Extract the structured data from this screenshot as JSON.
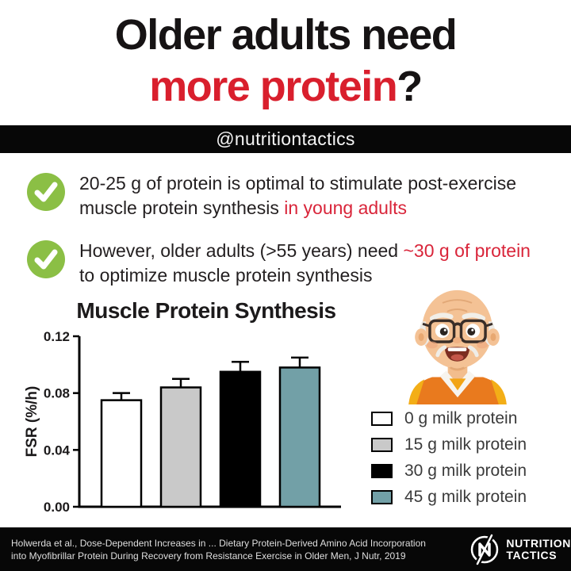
{
  "title": {
    "line1": "Older adults need",
    "line2_red": "more protein",
    "line2_black": "?"
  },
  "banner": {
    "handle": "@nutritiontactics"
  },
  "bullets": [
    {
      "line1": "20-25 g of protein is optimal to stimulate post-exercise",
      "line2_black": "muscle protein synthesis ",
      "line2_red": "in young adults"
    },
    {
      "line1_black": "However, older adults (>55 years) need ",
      "line1_red": "~30 g of protein",
      "line2": "to optimize muscle protein synthesis"
    }
  ],
  "chart_data": {
    "type": "bar",
    "title": "Muscle Protein Synthesis",
    "ylabel": "FSR (%/h)",
    "xlabel": "",
    "ylim": [
      0,
      0.12
    ],
    "yticks": [
      "0.00",
      "0.04",
      "0.08",
      "0.12"
    ],
    "grid": false,
    "legend_position": "right",
    "categories": [
      "0 g milk protein",
      "15 g milk protein",
      "30 g milk protein",
      "45 g milk protein"
    ],
    "values": [
      0.075,
      0.084,
      0.095,
      0.098
    ],
    "errors": [
      0.005,
      0.006,
      0.007,
      0.007
    ],
    "bar_colors": [
      "#ffffff",
      "#c9c9c9",
      "#000000",
      "#72a0a7"
    ]
  },
  "legend": {
    "items": [
      {
        "label": "0 g milk protein",
        "color": "#ffffff"
      },
      {
        "label": "15 g milk protein",
        "color": "#c9c9c9"
      },
      {
        "label": "30 g milk protein",
        "color": "#000000"
      },
      {
        "label": "45 g milk protein",
        "color": "#72a0a7"
      }
    ]
  },
  "icons": {
    "check_icon": "check-circle",
    "logo_icon": "nutrition-tactics-monogram",
    "illustration": "older-man-cartoon"
  },
  "footer": {
    "citation_line1": "Holwerda et al., Dose-Dependent Increases in ... Dietary Protein-Derived Amino Acid Incorporation",
    "citation_line2": "into Myofibrillar Protein During Recovery from Resistance Exercise in Older Men, J Nutr, 2019",
    "logo_line1": "NUTRITION",
    "logo_line2": "TACTICS"
  },
  "colors": {
    "accent_red": "#d91f2d",
    "check_green": "#8bbf45",
    "teal_bar": "#72a0a7",
    "gray_bar": "#c9c9c9",
    "band_black": "#070707"
  }
}
